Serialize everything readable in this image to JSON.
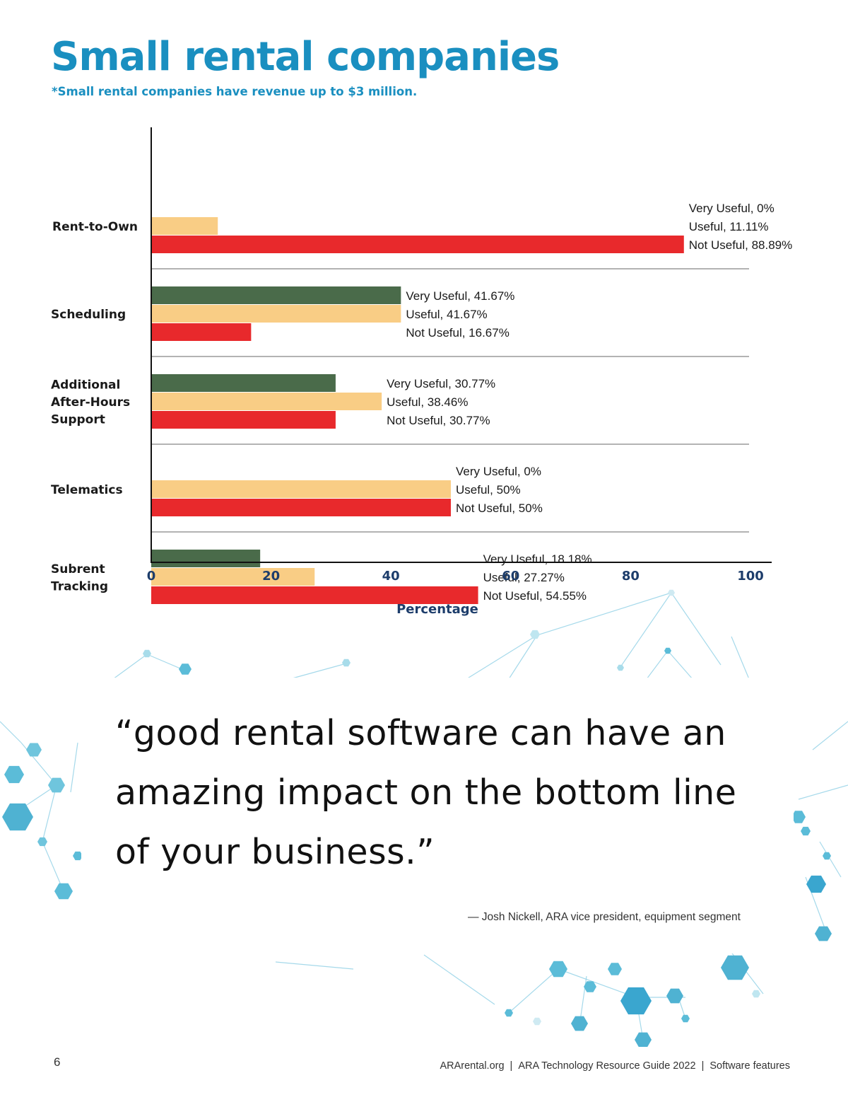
{
  "page": {
    "title": "Small rental companies",
    "subtitle": "*Small rental companies have revenue up to $3 million.",
    "quote": "“good rental software can have an amazing impact on the bottom line of your business.”",
    "attribution": "— Josh Nickell, ARA vice president, equipment segment",
    "page_number": "6",
    "footer": {
      "site": "ARArental.org",
      "publication": "ARA Technology Resource Guide 2022",
      "section": "Software features",
      "separator": "|"
    }
  },
  "colors": {
    "title": "#1a8fc0",
    "very_useful": "#4a6b4a",
    "useful": "#f9cd85",
    "not_useful": "#e8292c",
    "axis_text": "#1d3d6b"
  },
  "chart_data": {
    "type": "bar",
    "orientation": "horizontal",
    "categories": [
      "Rent-to-Own",
      "Scheduling",
      "Additional After-Hours Support",
      "Telematics",
      "Subrent Tracking"
    ],
    "series": [
      {
        "name": "Very Useful",
        "values": [
          0,
          41.67,
          30.77,
          0,
          18.18
        ]
      },
      {
        "name": "Useful",
        "values": [
          11.11,
          41.67,
          38.46,
          50,
          27.27
        ]
      },
      {
        "name": "Not Useful",
        "values": [
          88.89,
          16.67,
          30.77,
          50,
          54.55
        ]
      }
    ],
    "data_labels": [
      [
        "Very Useful, 0%",
        "Useful, 11.11%",
        "Not Useful, 88.89%"
      ],
      [
        "Very Useful, 41.67%",
        "Useful, 41.67%",
        "Not Useful, 16.67%"
      ],
      [
        "Very Useful, 30.77%",
        "Useful, 38.46%",
        "Not Useful, 30.77%"
      ],
      [
        "Very Useful, 0%",
        "Useful, 50%",
        "Not Useful, 50%"
      ],
      [
        "Very Useful, 18.18%",
        "Useful, 27.27%",
        "Not Useful, 54.55%"
      ]
    ],
    "category_label_lines": [
      [
        "Rent-to-Own"
      ],
      [
        "Scheduling"
      ],
      [
        "Additional",
        "After-Hours",
        "Support"
      ],
      [
        "Telematics"
      ],
      [
        "Subrent",
        "Tracking"
      ]
    ],
    "xlabel": "Percentage",
    "xlim": [
      0,
      100
    ],
    "xticks": [
      0,
      20,
      40,
      60,
      80,
      100
    ],
    "legend": "none",
    "grid": "separator lines between categories"
  }
}
